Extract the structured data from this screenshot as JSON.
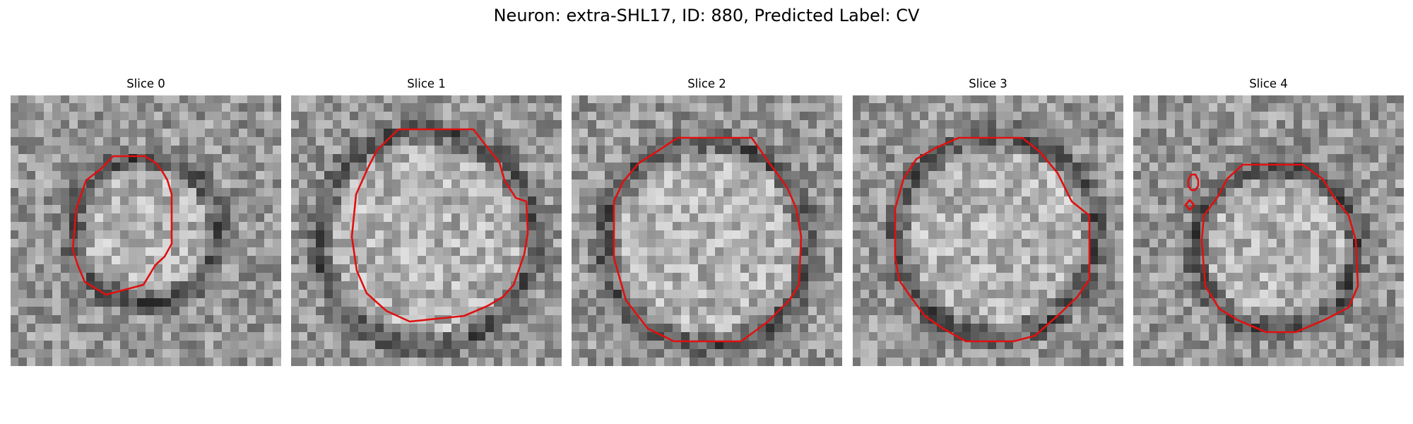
{
  "figure": {
    "title": "Neuron: extra-SHL17, ID: 880, Predicted Label: CV",
    "contour_color": "#e01010"
  },
  "slices": [
    {
      "title": "Slice 0"
    },
    {
      "title": "Slice 1"
    },
    {
      "title": "Slice 2"
    },
    {
      "title": "Slice 3"
    },
    {
      "title": "Slice 4"
    }
  ]
}
